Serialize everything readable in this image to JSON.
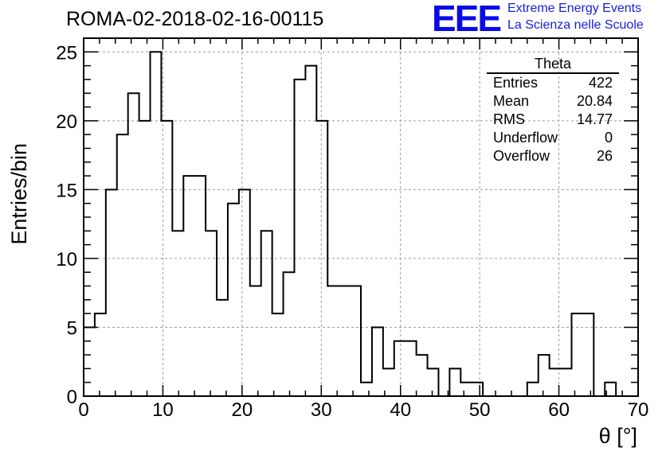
{
  "header": {
    "run_title": "ROMA-02-2018-02-16-00115",
    "logo_text": "EEE",
    "logo_line1": "Extreme Energy Events",
    "logo_line2": "La Scienza nelle Scuole",
    "logo_color": "#0a0ae6"
  },
  "stats_box": {
    "title": "Theta",
    "rows": [
      {
        "label": "Entries",
        "value": "422"
      },
      {
        "label": "Mean",
        "value": "20.84"
      },
      {
        "label": "RMS",
        "value": "14.77"
      },
      {
        "label": "Underflow",
        "value": "0"
      },
      {
        "label": "Overflow",
        "value": "26"
      }
    ]
  },
  "chart_data": {
    "type": "bar",
    "subtype": "histogram-step",
    "xlabel": "θ [°]",
    "ylabel": "Entries/bin",
    "xlim": [
      0,
      70
    ],
    "ylim": [
      0,
      26
    ],
    "x_ticks": [
      "0",
      "10",
      "20",
      "30",
      "40",
      "50",
      "60",
      "70"
    ],
    "y_ticks": [
      "0",
      "5",
      "10",
      "15",
      "20",
      "25"
    ],
    "bin_start": 0,
    "bin_width": 1.4,
    "values": [
      5,
      6,
      15,
      19,
      22,
      20,
      25,
      20,
      12,
      16,
      16,
      12,
      7,
      14,
      15,
      8,
      12,
      6,
      9,
      23,
      24,
      20,
      8,
      8,
      8,
      1,
      5,
      2,
      4,
      4,
      3,
      2,
      0,
      2,
      1,
      1,
      0,
      0,
      0,
      0,
      1,
      3,
      2,
      2,
      6,
      6,
      0,
      1,
      0,
      0
    ],
    "grid": true,
    "line_color": "#000000"
  }
}
